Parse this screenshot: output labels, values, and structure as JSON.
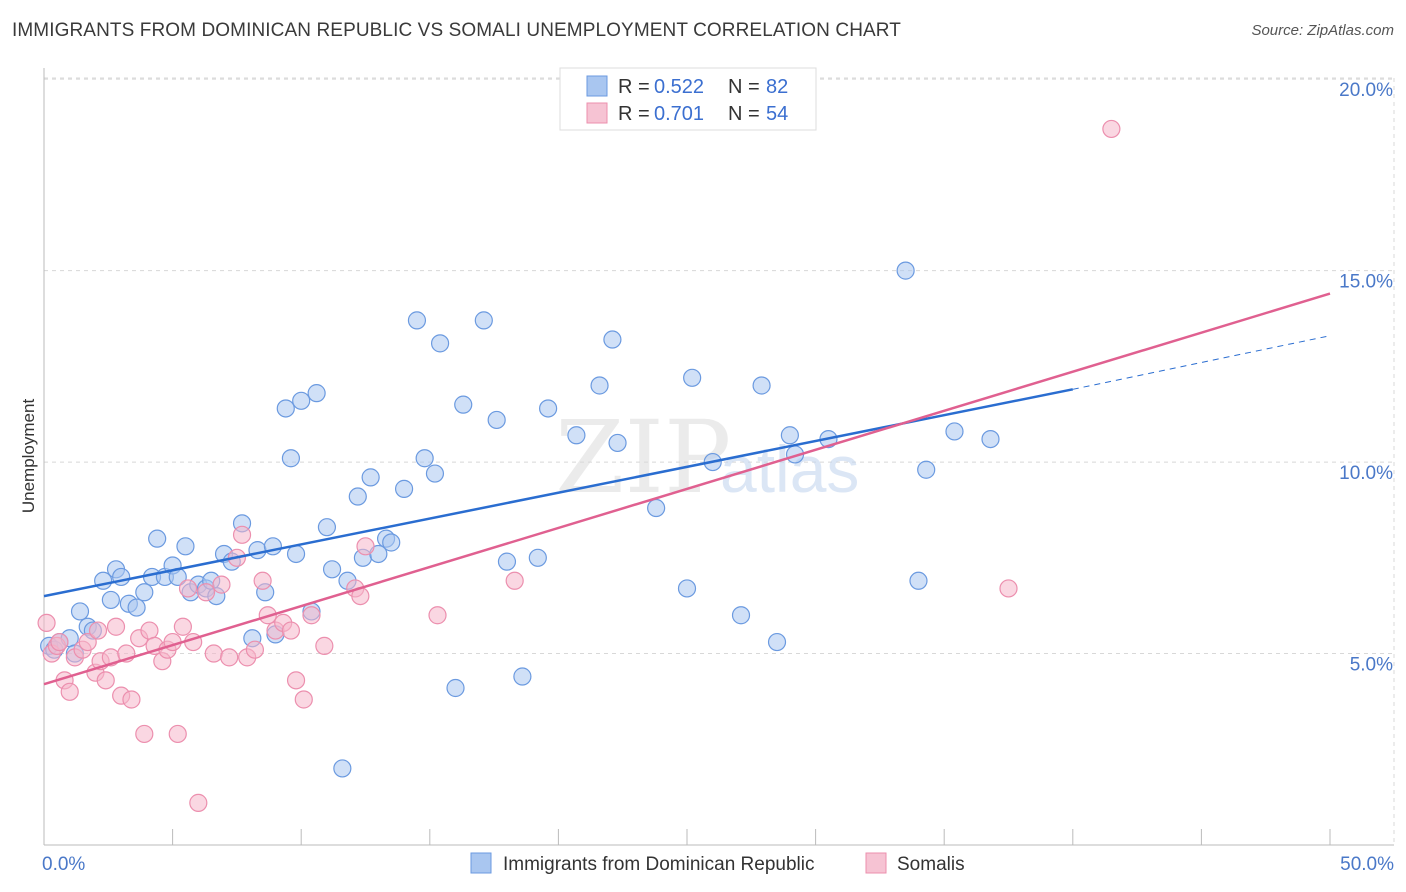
{
  "header": {
    "title": "IMMIGRANTS FROM DOMINICAN REPUBLIC VS SOMALI UNEMPLOYMENT CORRELATION CHART",
    "source": "Source: ZipAtlas.com"
  },
  "watermark": {
    "zip": "ZIP",
    "atlas": "atlas"
  },
  "legend": {
    "rows": [
      {
        "r_label": "R =",
        "r_value": "0.522",
        "n_label": "N =",
        "n_value": "82"
      },
      {
        "r_label": "R =",
        "r_value": "0.701",
        "n_label": "N =",
        "n_value": "54"
      }
    ]
  },
  "bottom_legend": {
    "items": [
      {
        "label": "Immigrants from Dominican Republic"
      },
      {
        "label": "Somalis"
      }
    ]
  },
  "chart_data": {
    "type": "scatter",
    "title": "IMMIGRANTS FROM DOMINICAN REPUBLIC VS SOMALI UNEMPLOYMENT CORRELATION CHART",
    "ylabel": "Unemployment",
    "xlabel": "",
    "xlim": [
      0,
      50
    ],
    "ylim": [
      0,
      20.5
    ],
    "x_tick_labels": {
      "min": "0.0%",
      "max": "50.0%"
    },
    "y_ticks": [
      {
        "value": 5,
        "label": "5.0%"
      },
      {
        "value": 10,
        "label": "10.0%"
      },
      {
        "value": 15,
        "label": "15.0%"
      },
      {
        "value": 20,
        "label": "20.0%"
      }
    ],
    "grid": true,
    "colors": {
      "dominican_fill": "#a9c6f0",
      "dominican_stroke": "#6b9ae0",
      "dominican_line": "#2a6dd0",
      "somali_fill": "#f6b6cb",
      "somali_stroke": "#ec8fae",
      "somali_line": "#e06090"
    },
    "series": [
      {
        "name": "Immigrants from Dominican Republic",
        "trend": {
          "x_start": 0,
          "y_start": 6.5,
          "x_end": 40,
          "y_end": 11.9,
          "x_dash_end": 50,
          "y_dash_end": 13.3
        },
        "points": [
          [
            0.2,
            5.2
          ],
          [
            0.4,
            5.1
          ],
          [
            0.6,
            5.3
          ],
          [
            1.0,
            5.4
          ],
          [
            1.2,
            5.0
          ],
          [
            1.4,
            6.1
          ],
          [
            1.7,
            5.7
          ],
          [
            1.9,
            5.6
          ],
          [
            2.3,
            6.9
          ],
          [
            2.6,
            6.4
          ],
          [
            2.8,
            7.2
          ],
          [
            3.0,
            7.0
          ],
          [
            3.3,
            6.3
          ],
          [
            3.6,
            6.2
          ],
          [
            3.9,
            6.6
          ],
          [
            4.2,
            7.0
          ],
          [
            4.4,
            8.0
          ],
          [
            4.7,
            7.0
          ],
          [
            5.0,
            7.3
          ],
          [
            5.2,
            7.0
          ],
          [
            5.5,
            7.8
          ],
          [
            5.7,
            6.6
          ],
          [
            6.0,
            6.8
          ],
          [
            6.3,
            6.7
          ],
          [
            6.5,
            6.9
          ],
          [
            6.7,
            6.5
          ],
          [
            7.0,
            7.6
          ],
          [
            7.3,
            7.4
          ],
          [
            7.7,
            8.4
          ],
          [
            8.1,
            5.4
          ],
          [
            8.3,
            7.7
          ],
          [
            8.6,
            6.6
          ],
          [
            8.9,
            7.8
          ],
          [
            9.0,
            5.5
          ],
          [
            9.4,
            11.4
          ],
          [
            9.6,
            10.1
          ],
          [
            9.8,
            7.6
          ],
          [
            10.0,
            11.6
          ],
          [
            10.4,
            6.1
          ],
          [
            10.6,
            11.8
          ],
          [
            11.0,
            8.3
          ],
          [
            11.2,
            7.2
          ],
          [
            11.6,
            2.0
          ],
          [
            11.8,
            6.9
          ],
          [
            12.2,
            9.1
          ],
          [
            12.4,
            7.5
          ],
          [
            12.7,
            9.6
          ],
          [
            13.0,
            7.6
          ],
          [
            13.3,
            8.0
          ],
          [
            13.5,
            7.9
          ],
          [
            14.0,
            9.3
          ],
          [
            14.5,
            13.7
          ],
          [
            14.8,
            10.1
          ],
          [
            15.2,
            9.7
          ],
          [
            15.4,
            13.1
          ],
          [
            16.0,
            4.1
          ],
          [
            16.3,
            11.5
          ],
          [
            17.1,
            13.7
          ],
          [
            17.6,
            11.1
          ],
          [
            18.0,
            7.4
          ],
          [
            18.6,
            4.4
          ],
          [
            19.2,
            7.5
          ],
          [
            19.6,
            11.4
          ],
          [
            20.7,
            10.7
          ],
          [
            21.6,
            12.0
          ],
          [
            22.1,
            13.2
          ],
          [
            22.3,
            10.5
          ],
          [
            23.8,
            8.8
          ],
          [
            25.0,
            6.7
          ],
          [
            25.2,
            12.2
          ],
          [
            26.0,
            10.0
          ],
          [
            27.1,
            6.0
          ],
          [
            27.9,
            12.0
          ],
          [
            28.5,
            5.3
          ],
          [
            29.0,
            10.7
          ],
          [
            29.2,
            10.2
          ],
          [
            30.5,
            10.6
          ],
          [
            33.5,
            15.0
          ],
          [
            34.0,
            6.9
          ],
          [
            34.3,
            9.8
          ],
          [
            35.4,
            10.8
          ],
          [
            36.8,
            10.6
          ]
        ]
      },
      {
        "name": "Somalis",
        "trend": {
          "x_start": 0,
          "y_start": 4.2,
          "x_end": 50,
          "y_end": 14.4
        },
        "points": [
          [
            0.1,
            5.8
          ],
          [
            0.3,
            5.0
          ],
          [
            0.5,
            5.2
          ],
          [
            0.8,
            4.3
          ],
          [
            1.0,
            4.0
          ],
          [
            1.2,
            4.9
          ],
          [
            1.5,
            5.1
          ],
          [
            1.7,
            5.3
          ],
          [
            2.0,
            4.5
          ],
          [
            2.2,
            4.8
          ],
          [
            2.4,
            4.3
          ],
          [
            2.6,
            4.9
          ],
          [
            2.8,
            5.7
          ],
          [
            3.0,
            3.9
          ],
          [
            3.2,
            5.0
          ],
          [
            3.4,
            3.8
          ],
          [
            3.7,
            5.4
          ],
          [
            3.9,
            2.9
          ],
          [
            4.1,
            5.6
          ],
          [
            4.3,
            5.2
          ],
          [
            4.6,
            4.8
          ],
          [
            4.8,
            5.1
          ],
          [
            5.0,
            5.3
          ],
          [
            5.2,
            2.9
          ],
          [
            5.4,
            5.7
          ],
          [
            5.6,
            6.7
          ],
          [
            5.8,
            5.3
          ],
          [
            6.0,
            1.1
          ],
          [
            6.3,
            6.6
          ],
          [
            6.6,
            5.0
          ],
          [
            6.9,
            6.8
          ],
          [
            7.2,
            4.9
          ],
          [
            7.5,
            7.5
          ],
          [
            7.7,
            8.1
          ],
          [
            7.9,
            4.9
          ],
          [
            8.2,
            5.1
          ],
          [
            8.5,
            6.9
          ],
          [
            8.7,
            6.0
          ],
          [
            9.0,
            5.6
          ],
          [
            9.3,
            5.8
          ],
          [
            9.6,
            5.6
          ],
          [
            9.8,
            4.3
          ],
          [
            10.1,
            3.8
          ],
          [
            10.4,
            6.0
          ],
          [
            10.9,
            5.2
          ],
          [
            12.1,
            6.7
          ],
          [
            12.3,
            6.5
          ],
          [
            12.5,
            7.8
          ],
          [
            15.3,
            6.0
          ],
          [
            18.3,
            6.9
          ],
          [
            37.5,
            6.7
          ],
          [
            41.5,
            18.7
          ],
          [
            0.6,
            5.3
          ],
          [
            2.1,
            5.6
          ]
        ]
      }
    ]
  }
}
